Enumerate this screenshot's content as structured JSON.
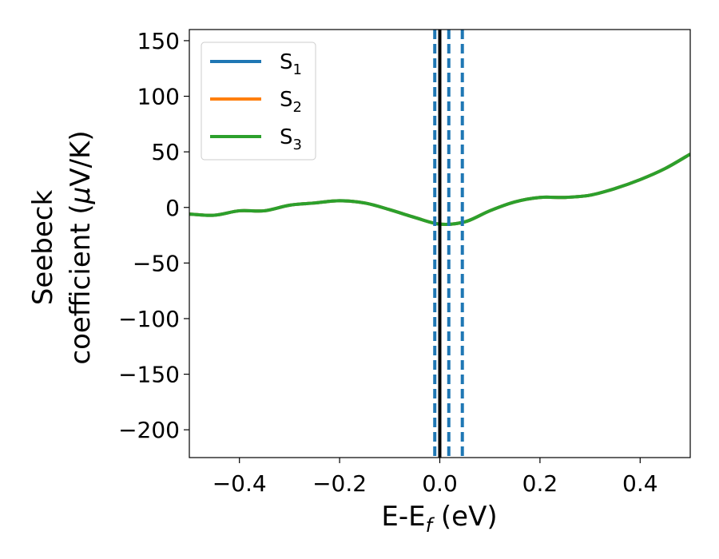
{
  "chart_data": {
    "type": "line",
    "xlabel": {
      "main": "E-E",
      "sub": "f",
      "tail": " (eV)"
    },
    "ylabel_line1": "Seebeck",
    "ylabel_line2_pre": "coefficient  (",
    "ylabel_line2_mu": "μ",
    "ylabel_line2_post": "V/K)",
    "xlim": [
      -0.5,
      0.5
    ],
    "ylim": [
      -225,
      160
    ],
    "xticks": [
      -0.4,
      -0.2,
      0.0,
      0.2,
      0.4
    ],
    "xtick_labels": [
      "−0.4",
      "−0.2",
      "0.0",
      "0.2",
      "0.4"
    ],
    "yticks": [
      -200,
      -150,
      -100,
      -50,
      0,
      50,
      100,
      150
    ],
    "ytick_labels": [
      "−200",
      "−150",
      "−100",
      "−50",
      "0",
      "50",
      "100",
      "150"
    ],
    "grid": false,
    "legend_position": "top-left",
    "legend": [
      {
        "base": "S",
        "sub": "1",
        "color": "#1f77b4"
      },
      {
        "base": "S",
        "sub": "2",
        "color": "#ff7f0e"
      },
      {
        "base": "S",
        "sub": "3",
        "color": "#2ca02c"
      }
    ],
    "x": [
      -0.5,
      -0.45,
      -0.4,
      -0.35,
      -0.3,
      -0.25,
      -0.2,
      -0.15,
      -0.1,
      -0.05,
      0.0,
      0.05,
      0.1,
      0.15,
      0.2,
      0.25,
      0.3,
      0.35,
      0.4,
      0.45,
      0.5
    ],
    "series": [
      {
        "name": "S1",
        "color": "#1f77b4",
        "values": [
          -6,
          -7,
          -3,
          -3,
          2,
          4,
          6,
          4,
          -2,
          -9,
          -15,
          -13,
          -3,
          5,
          9,
          9,
          11,
          17,
          25,
          35,
          48
        ]
      },
      {
        "name": "S2",
        "color": "#ff7f0e",
        "values": [
          -6,
          -7,
          -3,
          -3,
          2,
          4,
          6,
          4,
          -2,
          -9,
          -15,
          -13,
          -3,
          5,
          9,
          9,
          11,
          17,
          25,
          35,
          48
        ]
      },
      {
        "name": "S3",
        "color": "#2ca02c",
        "values": [
          -6,
          -7,
          -3,
          -3,
          2,
          4,
          6,
          4,
          -2,
          -9,
          -15,
          -13,
          -3,
          5,
          9,
          9,
          11,
          17,
          25,
          35,
          48
        ]
      }
    ],
    "fermi_line": {
      "x": 0.0,
      "color": "#000000"
    },
    "dashed_lines": [
      {
        "x": -0.01,
        "color": "#1f77b4"
      },
      {
        "x": 0.018,
        "color": "#1f77b4"
      },
      {
        "x": 0.045,
        "color": "#1f77b4"
      }
    ]
  }
}
